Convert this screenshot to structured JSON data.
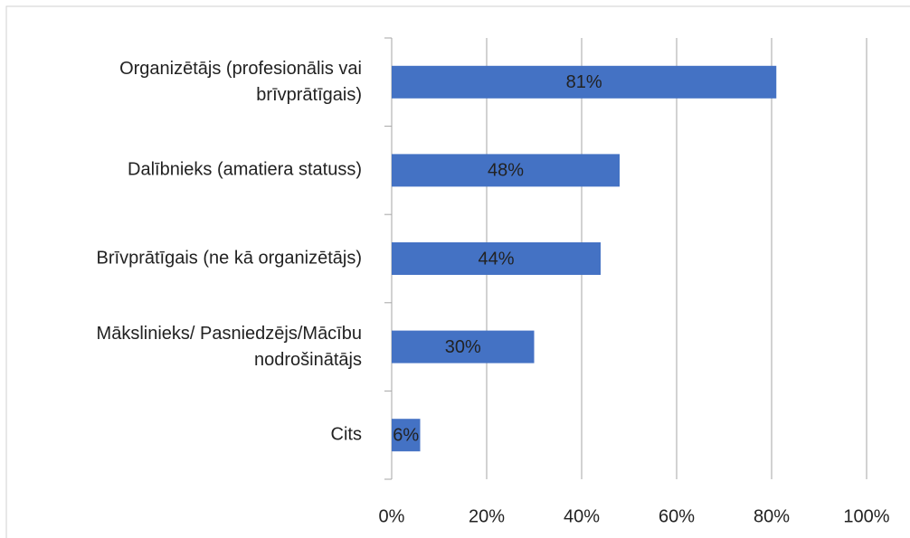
{
  "chart_data": {
    "type": "barh",
    "categories": [
      "Organizētājs (profesionālis vai\nbrīvprātīgais)",
      "Dalībnieks (amatiera statuss)",
      "Brīvprātīgais (ne kā organizētājs)",
      "Mākslinieks/ Pasniedzējs/Mācību\nnodrošinātājs",
      "Cits"
    ],
    "values": [
      81,
      48,
      44,
      30,
      6
    ],
    "value_labels": [
      "81%",
      "48%",
      "44%",
      "30%",
      "6%"
    ],
    "color": "#4472c4",
    "xlim": [
      0,
      100
    ],
    "xticks": [
      {
        "value": 0,
        "label": "0%"
      },
      {
        "value": 20,
        "label": "20%"
      },
      {
        "value": 40,
        "label": "40%"
      },
      {
        "value": 60,
        "label": "60%"
      },
      {
        "value": 80,
        "label": "80%"
      },
      {
        "value": 100,
        "label": "100%"
      }
    ],
    "grid": true
  }
}
